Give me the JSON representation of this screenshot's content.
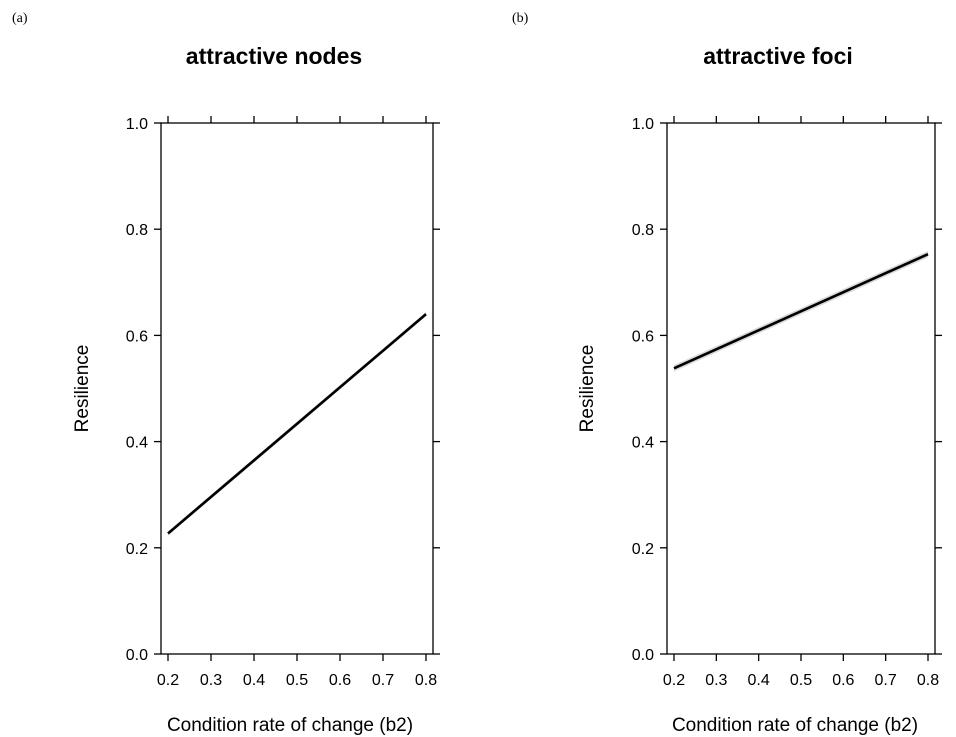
{
  "chart_data": [
    {
      "type": "line",
      "panel_label": "(a)",
      "title": "attractive nodes",
      "xlabel": "Condition rate of change (b2)",
      "ylabel": "Resilience",
      "xlim": [
        0.2,
        0.8
      ],
      "ylim": [
        0.0,
        1.0
      ],
      "xticks": [
        "0.2",
        "0.3",
        "0.4",
        "0.5",
        "0.6",
        "0.7",
        "0.8"
      ],
      "yticks": [
        "0.0",
        "0.2",
        "0.4",
        "0.6",
        "0.8",
        "1.0"
      ],
      "grid": false,
      "series": [
        {
          "x": [
            0.2,
            0.8
          ],
          "y": [
            0.227,
            0.64
          ],
          "ci_halfwidth": 0.004
        }
      ]
    },
    {
      "type": "line",
      "panel_label": "(b)",
      "title": "attractive foci",
      "xlabel": "Condition rate of change (b2)",
      "ylabel": "Resilience",
      "xlim": [
        0.2,
        0.8
      ],
      "ylim": [
        0.0,
        1.0
      ],
      "xticks": [
        "0.2",
        "0.3",
        "0.4",
        "0.5",
        "0.6",
        "0.7",
        "0.8"
      ],
      "yticks": [
        "0.0",
        "0.2",
        "0.4",
        "0.6",
        "0.8",
        "1.0"
      ],
      "grid": false,
      "series": [
        {
          "x": [
            0.2,
            0.8
          ],
          "y": [
            0.538,
            0.753
          ],
          "ci_halfwidth": 0.006
        }
      ]
    }
  ]
}
